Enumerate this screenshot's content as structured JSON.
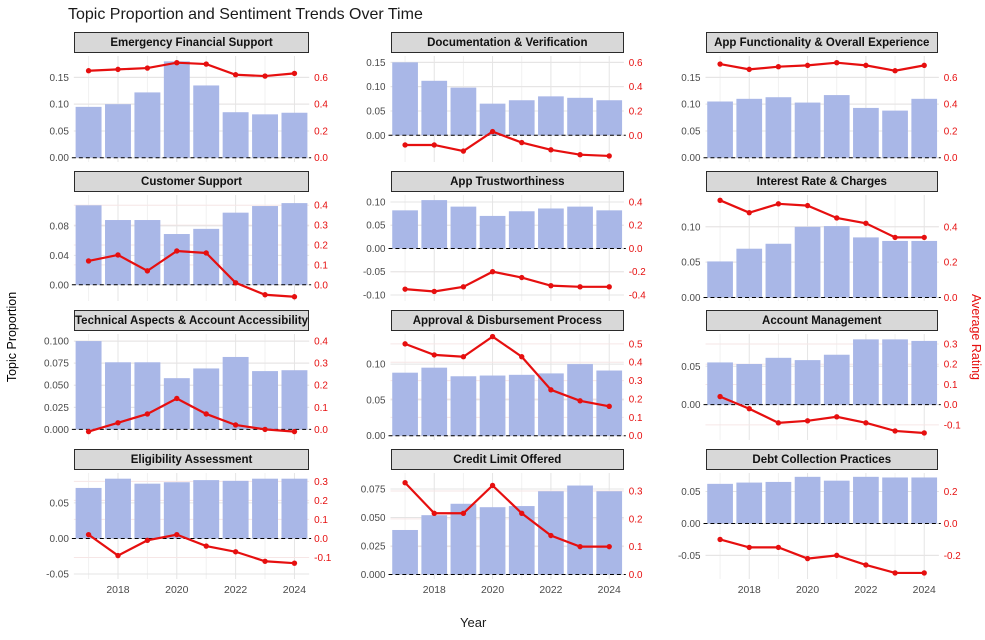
{
  "title": "Topic Proportion and Sentiment Trends Over Time",
  "axes": {
    "left_label": "Topic Proportion",
    "right_label": "Average Rating",
    "x_label": "Year",
    "x_tick_years": [
      2018,
      2020,
      2022,
      2024
    ]
  },
  "colors": {
    "bar": "#a9b7e7",
    "line": "#e60f0f",
    "strip_bg": "#d8d8d8",
    "strip_border": "#2b2b2b",
    "grid_major": "#e4e4e4",
    "grid_minor": "#f1f1f1",
    "grid_right": "#f6e6e6",
    "tick_text": "#4a4a4a",
    "zero_line": "#000000"
  },
  "chart_data": [
    {
      "type": "bar+line",
      "title": "Emergency Financial Support",
      "x": [
        2017,
        2018,
        2019,
        2020,
        2021,
        2022,
        2023,
        2024
      ],
      "series": [
        {
          "name": "Topic Proportion",
          "type": "bar",
          "values": [
            0.095,
            0.1,
            0.122,
            0.18,
            0.135,
            0.085,
            0.081,
            0.084
          ]
        },
        {
          "name": "Average Rating",
          "type": "line",
          "values": [
            0.65,
            0.66,
            0.67,
            0.71,
            0.7,
            0.62,
            0.61,
            0.63
          ]
        }
      ],
      "left_ticks": [
        {
          "v": 0,
          "t": "0.00"
        },
        {
          "v": 0.05,
          "t": "0.05"
        },
        {
          "v": 0.1,
          "t": "0.10"
        },
        {
          "v": 0.15,
          "t": "0.15"
        }
      ],
      "right_ticks": [
        {
          "v": 0,
          "t": "0.0"
        },
        {
          "v": 0.2,
          "t": "0.2"
        },
        {
          "v": 0.4,
          "t": "0.4"
        },
        {
          "v": 0.6,
          "t": "0.6"
        }
      ],
      "ylim_left": [
        -0.008,
        0.19
      ],
      "rating_scale": 4.0
    },
    {
      "type": "bar+line",
      "title": "Documentation & Verification",
      "x": [
        2017,
        2018,
        2019,
        2020,
        2021,
        2022,
        2023,
        2024
      ],
      "series": [
        {
          "name": "Topic Proportion",
          "type": "bar",
          "values": [
            0.15,
            0.112,
            0.098,
            0.065,
            0.072,
            0.08,
            0.077,
            0.072
          ]
        },
        {
          "name": "Average Rating",
          "type": "line",
          "values": [
            -0.08,
            -0.08,
            -0.13,
            0.03,
            -0.06,
            -0.12,
            -0.16,
            -0.17
          ]
        }
      ],
      "left_ticks": [
        {
          "v": 0,
          "t": "0.00"
        },
        {
          "v": 0.05,
          "t": "0.05"
        },
        {
          "v": 0.1,
          "t": "0.10"
        },
        {
          "v": 0.15,
          "t": "0.15"
        }
      ],
      "right_ticks": [
        {
          "v": 0,
          "t": "0.0"
        },
        {
          "v": 0.2,
          "t": "0.2"
        },
        {
          "v": 0.4,
          "t": "0.4"
        },
        {
          "v": 0.6,
          "t": "0.6"
        }
      ],
      "ylim_left": [
        -0.055,
        0.163
      ],
      "rating_scale": 4.0
    },
    {
      "type": "bar+line",
      "title": "App Functionality & Overall Experience",
      "x": [
        2017,
        2018,
        2019,
        2020,
        2021,
        2022,
        2023,
        2024
      ],
      "series": [
        {
          "name": "Topic Proportion",
          "type": "bar",
          "values": [
            0.105,
            0.11,
            0.113,
            0.103,
            0.117,
            0.093,
            0.088,
            0.11
          ]
        },
        {
          "name": "Average Rating",
          "type": "line",
          "values": [
            0.7,
            0.66,
            0.68,
            0.69,
            0.71,
            0.69,
            0.65,
            0.69
          ]
        }
      ],
      "left_ticks": [
        {
          "v": 0,
          "t": "0.00"
        },
        {
          "v": 0.05,
          "t": "0.05"
        },
        {
          "v": 0.1,
          "t": "0.10"
        },
        {
          "v": 0.15,
          "t": "0.15"
        }
      ],
      "right_ticks": [
        {
          "v": 0,
          "t": "0.0"
        },
        {
          "v": 0.2,
          "t": "0.2"
        },
        {
          "v": 0.4,
          "t": "0.4"
        },
        {
          "v": 0.6,
          "t": "0.6"
        }
      ],
      "ylim_left": [
        -0.008,
        0.19
      ],
      "rating_scale": 4.0
    },
    {
      "type": "bar+line",
      "title": "Customer Support",
      "x": [
        2017,
        2018,
        2019,
        2020,
        2021,
        2022,
        2023,
        2024
      ],
      "series": [
        {
          "name": "Topic Proportion",
          "type": "bar",
          "values": [
            0.108,
            0.088,
            0.088,
            0.069,
            0.076,
            0.098,
            0.107,
            0.111
          ]
        },
        {
          "name": "Average Rating",
          "type": "line",
          "values": [
            0.12,
            0.15,
            0.07,
            0.17,
            0.16,
            0.01,
            -0.05,
            -0.06
          ]
        }
      ],
      "left_ticks": [
        {
          "v": 0,
          "t": "0.00"
        },
        {
          "v": 0.04,
          "t": "0.04"
        },
        {
          "v": 0.08,
          "t": "0.08"
        }
      ],
      "right_ticks": [
        {
          "v": 0,
          "t": "0.0"
        },
        {
          "v": 0.1,
          "t": "0.1"
        },
        {
          "v": 0.2,
          "t": "0.2"
        },
        {
          "v": 0.3,
          "t": "0.3"
        },
        {
          "v": 0.4,
          "t": "0.4"
        }
      ],
      "ylim_left": [
        -0.022,
        0.122
      ],
      "rating_scale": 3.7
    },
    {
      "type": "bar+line",
      "title": "App Trustworthiness",
      "x": [
        2017,
        2018,
        2019,
        2020,
        2021,
        2022,
        2023,
        2024
      ],
      "series": [
        {
          "name": "Topic Proportion",
          "type": "bar",
          "values": [
            0.082,
            0.104,
            0.09,
            0.07,
            0.08,
            0.086,
            0.09,
            0.082
          ]
        },
        {
          "name": "Average Rating",
          "type": "line",
          "values": [
            -0.35,
            -0.37,
            -0.33,
            -0.2,
            -0.25,
            -0.32,
            -0.33,
            -0.33
          ]
        }
      ],
      "left_ticks": [
        {
          "v": -0.1,
          "t": "-0.10"
        },
        {
          "v": -0.05,
          "t": "-0.05"
        },
        {
          "v": 0,
          "t": "0.00"
        },
        {
          "v": 0.05,
          "t": "0.05"
        },
        {
          "v": 0.1,
          "t": "0.10"
        }
      ],
      "right_ticks": [
        {
          "v": -0.4,
          "t": "-0.4"
        },
        {
          "v": -0.2,
          "t": "-0.2"
        },
        {
          "v": 0,
          "t": "0.0"
        },
        {
          "v": 0.2,
          "t": "0.2"
        },
        {
          "v": 0.4,
          "t": "0.4"
        }
      ],
      "ylim_left": [
        -0.113,
        0.115
      ],
      "rating_scale": 4.0
    },
    {
      "type": "bar+line",
      "title": "Interest Rate & Charges",
      "x": [
        2017,
        2018,
        2019,
        2020,
        2021,
        2022,
        2023,
        2024
      ],
      "series": [
        {
          "name": "Topic Proportion",
          "type": "bar",
          "values": [
            0.051,
            0.069,
            0.076,
            0.1,
            0.101,
            0.085,
            0.08,
            0.08
          ]
        },
        {
          "name": "Average Rating",
          "type": "line",
          "values": [
            0.55,
            0.48,
            0.53,
            0.52,
            0.45,
            0.42,
            0.34,
            0.34
          ]
        }
      ],
      "left_ticks": [
        {
          "v": 0,
          "t": "0.00"
        },
        {
          "v": 0.05,
          "t": "0.05"
        },
        {
          "v": 0.1,
          "t": "0.10"
        }
      ],
      "right_ticks": [
        {
          "v": 0,
          "t": "0.0"
        },
        {
          "v": 0.2,
          "t": "0.2"
        },
        {
          "v": 0.4,
          "t": "0.4"
        }
      ],
      "ylim_left": [
        -0.005,
        0.145
      ],
      "rating_scale": 4.0
    },
    {
      "type": "bar+line",
      "title": "Technical Aspects & Account Accessibility",
      "x": [
        2017,
        2018,
        2019,
        2020,
        2021,
        2022,
        2023,
        2024
      ],
      "series": [
        {
          "name": "Topic Proportion",
          "type": "bar",
          "values": [
            0.1,
            0.076,
            0.076,
            0.058,
            0.069,
            0.082,
            0.066,
            0.067
          ]
        },
        {
          "name": "Average Rating",
          "type": "line",
          "values": [
            -0.01,
            0.03,
            0.07,
            0.14,
            0.07,
            0.02,
            0.0,
            -0.01
          ]
        }
      ],
      "left_ticks": [
        {
          "v": 0,
          "t": "0.000"
        },
        {
          "v": 0.025,
          "t": "0.025"
        },
        {
          "v": 0.05,
          "t": "0.050"
        },
        {
          "v": 0.075,
          "t": "0.075"
        },
        {
          "v": 0.1,
          "t": "0.100"
        }
      ],
      "right_ticks": [
        {
          "v": 0,
          "t": "0.0"
        },
        {
          "v": 0.1,
          "t": "0.1"
        },
        {
          "v": 0.2,
          "t": "0.2"
        },
        {
          "v": 0.3,
          "t": "0.3"
        },
        {
          "v": 0.4,
          "t": "0.4"
        }
      ],
      "ylim_left": [
        -0.012,
        0.108
      ],
      "rating_scale": 4.0
    },
    {
      "type": "bar+line",
      "title": "Approval & Disbursement Process",
      "x": [
        2017,
        2018,
        2019,
        2020,
        2021,
        2022,
        2023,
        2024
      ],
      "series": [
        {
          "name": "Topic Proportion",
          "type": "bar",
          "values": [
            0.088,
            0.095,
            0.083,
            0.084,
            0.085,
            0.087,
            0.1,
            0.091
          ]
        },
        {
          "name": "Average Rating",
          "type": "line",
          "values": [
            0.5,
            0.44,
            0.43,
            0.54,
            0.43,
            0.25,
            0.19,
            0.16
          ]
        }
      ],
      "left_ticks": [
        {
          "v": 0,
          "t": "0.00"
        },
        {
          "v": 0.05,
          "t": "0.05"
        },
        {
          "v": 0.1,
          "t": "0.10"
        }
      ],
      "right_ticks": [
        {
          "v": 0,
          "t": "0.0"
        },
        {
          "v": 0.1,
          "t": "0.1"
        },
        {
          "v": 0.2,
          "t": "0.2"
        },
        {
          "v": 0.3,
          "t": "0.3"
        },
        {
          "v": 0.4,
          "t": "0.4"
        },
        {
          "v": 0.5,
          "t": "0.5"
        }
      ],
      "ylim_left": [
        -0.006,
        0.142
      ],
      "rating_scale": 3.9
    },
    {
      "type": "bar+line",
      "title": "Account Management",
      "x": [
        2017,
        2018,
        2019,
        2020,
        2021,
        2022,
        2023,
        2024
      ],
      "series": [
        {
          "name": "Topic Proportion",
          "type": "bar",
          "values": [
            0.055,
            0.053,
            0.061,
            0.058,
            0.065,
            0.085,
            0.085,
            0.083
          ]
        },
        {
          "name": "Average Rating",
          "type": "line",
          "values": [
            0.04,
            -0.02,
            -0.09,
            -0.08,
            -0.06,
            -0.09,
            -0.13,
            -0.14
          ]
        }
      ],
      "left_ticks": [
        {
          "v": 0,
          "t": "0.00"
        },
        {
          "v": 0.05,
          "t": "0.05"
        }
      ],
      "right_ticks": [
        {
          "v": -0.1,
          "t": "-0.1"
        },
        {
          "v": 0,
          "t": "0.0"
        },
        {
          "v": 0.1,
          "t": "0.1"
        },
        {
          "v": 0.2,
          "t": "0.2"
        },
        {
          "v": 0.3,
          "t": "0.3"
        }
      ],
      "ylim_left": [
        -0.046,
        0.092
      ],
      "rating_scale": 3.8
    },
    {
      "type": "bar+line",
      "title": "Eligibility Assessment",
      "x": [
        2017,
        2018,
        2019,
        2020,
        2021,
        2022,
        2023,
        2024
      ],
      "series": [
        {
          "name": "Topic Proportion",
          "type": "bar",
          "values": [
            0.071,
            0.084,
            0.077,
            0.079,
            0.082,
            0.081,
            0.084,
            0.084
          ]
        },
        {
          "name": "Average Rating",
          "type": "line",
          "values": [
            0.02,
            -0.09,
            -0.01,
            0.02,
            -0.04,
            -0.07,
            -0.12,
            -0.13
          ]
        }
      ],
      "left_ticks": [
        {
          "v": -0.05,
          "t": "-0.05"
        },
        {
          "v": 0,
          "t": "0.00"
        },
        {
          "v": 0.05,
          "t": "0.05"
        }
      ],
      "right_ticks": [
        {
          "v": -0.1,
          "t": "-0.1"
        },
        {
          "v": 0,
          "t": "0.0"
        },
        {
          "v": 0.1,
          "t": "0.1"
        },
        {
          "v": 0.2,
          "t": "0.2"
        },
        {
          "v": 0.3,
          "t": "0.3"
        }
      ],
      "ylim_left": [
        -0.057,
        0.092
      ],
      "rating_scale": 3.74
    },
    {
      "type": "bar+line",
      "title": "Credit Limit Offered",
      "x": [
        2017,
        2018,
        2019,
        2020,
        2021,
        2022,
        2023,
        2024
      ],
      "series": [
        {
          "name": "Topic Proportion",
          "type": "bar",
          "values": [
            0.039,
            0.052,
            0.062,
            0.059,
            0.06,
            0.073,
            0.078,
            0.073
          ]
        },
        {
          "name": "Average Rating",
          "type": "line",
          "values": [
            0.33,
            0.22,
            0.22,
            0.32,
            0.22,
            0.14,
            0.1,
            0.1
          ]
        }
      ],
      "left_ticks": [
        {
          "v": 0,
          "t": "0.000"
        },
        {
          "v": 0.025,
          "t": "0.025"
        },
        {
          "v": 0.05,
          "t": "0.050"
        },
        {
          "v": 0.075,
          "t": "0.075"
        }
      ],
      "right_ticks": [
        {
          "v": 0,
          "t": "0.0"
        },
        {
          "v": 0.1,
          "t": "0.1"
        },
        {
          "v": 0.2,
          "t": "0.2"
        },
        {
          "v": 0.3,
          "t": "0.3"
        }
      ],
      "ylim_left": [
        -0.004,
        0.089
      ],
      "rating_scale": 4.1
    },
    {
      "type": "bar+line",
      "title": "Debt Collection Practices",
      "x": [
        2017,
        2018,
        2019,
        2020,
        2021,
        2022,
        2023,
        2024
      ],
      "series": [
        {
          "name": "Topic Proportion",
          "type": "bar",
          "values": [
            0.062,
            0.064,
            0.065,
            0.073,
            0.067,
            0.073,
            0.072,
            0.072
          ]
        },
        {
          "name": "Average Rating",
          "type": "line",
          "values": [
            -0.1,
            -0.15,
            -0.15,
            -0.22,
            -0.2,
            -0.26,
            -0.31,
            -0.31
          ]
        }
      ],
      "left_ticks": [
        {
          "v": -0.05,
          "t": "-0.05"
        },
        {
          "v": 0,
          "t": "0.00"
        },
        {
          "v": 0.05,
          "t": "0.05"
        }
      ],
      "right_ticks": [
        {
          "v": -0.2,
          "t": "-0.2"
        },
        {
          "v": 0,
          "t": "0.0"
        },
        {
          "v": 0.2,
          "t": "0.2"
        }
      ],
      "ylim_left": [
        -0.087,
        0.079
      ],
      "rating_scale": 4.0
    }
  ]
}
